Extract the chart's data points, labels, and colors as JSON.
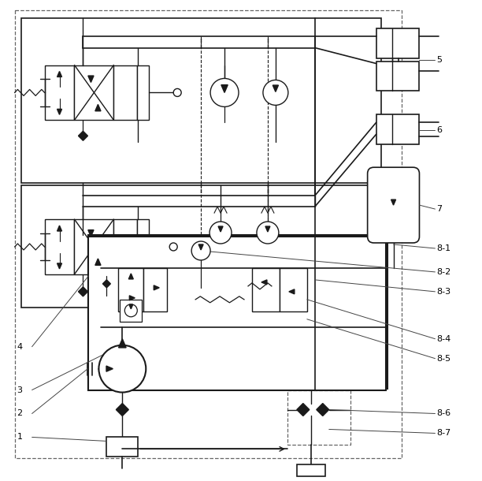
{
  "bg_color": "#ffffff",
  "lc": "#1a1a1a",
  "dc": "#666666",
  "figsize": [
    6.12,
    6.1
  ],
  "dpi": 100
}
